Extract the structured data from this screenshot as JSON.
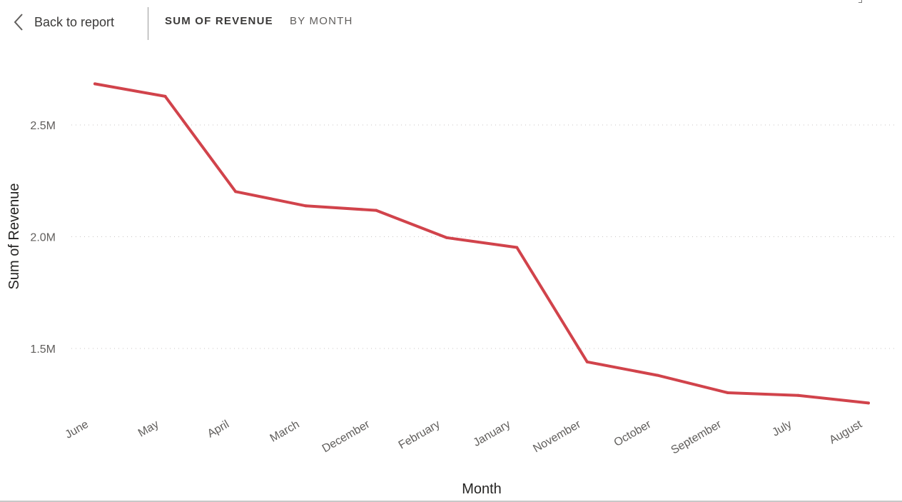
{
  "header": {
    "back_label": "Back to report",
    "crumb_primary": "SUM OF REVENUE",
    "crumb_secondary": "BY MONTH"
  },
  "chart_data": {
    "type": "line",
    "xlabel": "Month",
    "ylabel": "Sum of Revenue",
    "color": "#D1434B",
    "categories": [
      "June",
      "May",
      "April",
      "March",
      "December",
      "February",
      "January",
      "November",
      "October",
      "September",
      "July",
      "August"
    ],
    "series": [
      {
        "values": [
          2684000,
          2628000,
          2202000,
          2138000,
          2118000,
          1996000,
          1952000,
          1440000,
          1380000,
          1302000,
          1290000,
          1256000
        ]
      }
    ],
    "y_ticks": [
      {
        "value": 1500000,
        "label": "1.5M"
      },
      {
        "value": 2000000,
        "label": "2.0M"
      },
      {
        "value": 2500000,
        "label": "2.5M"
      }
    ],
    "grid": true,
    "gridline_style": "dotted",
    "x_label_rotation_deg": -30
  }
}
